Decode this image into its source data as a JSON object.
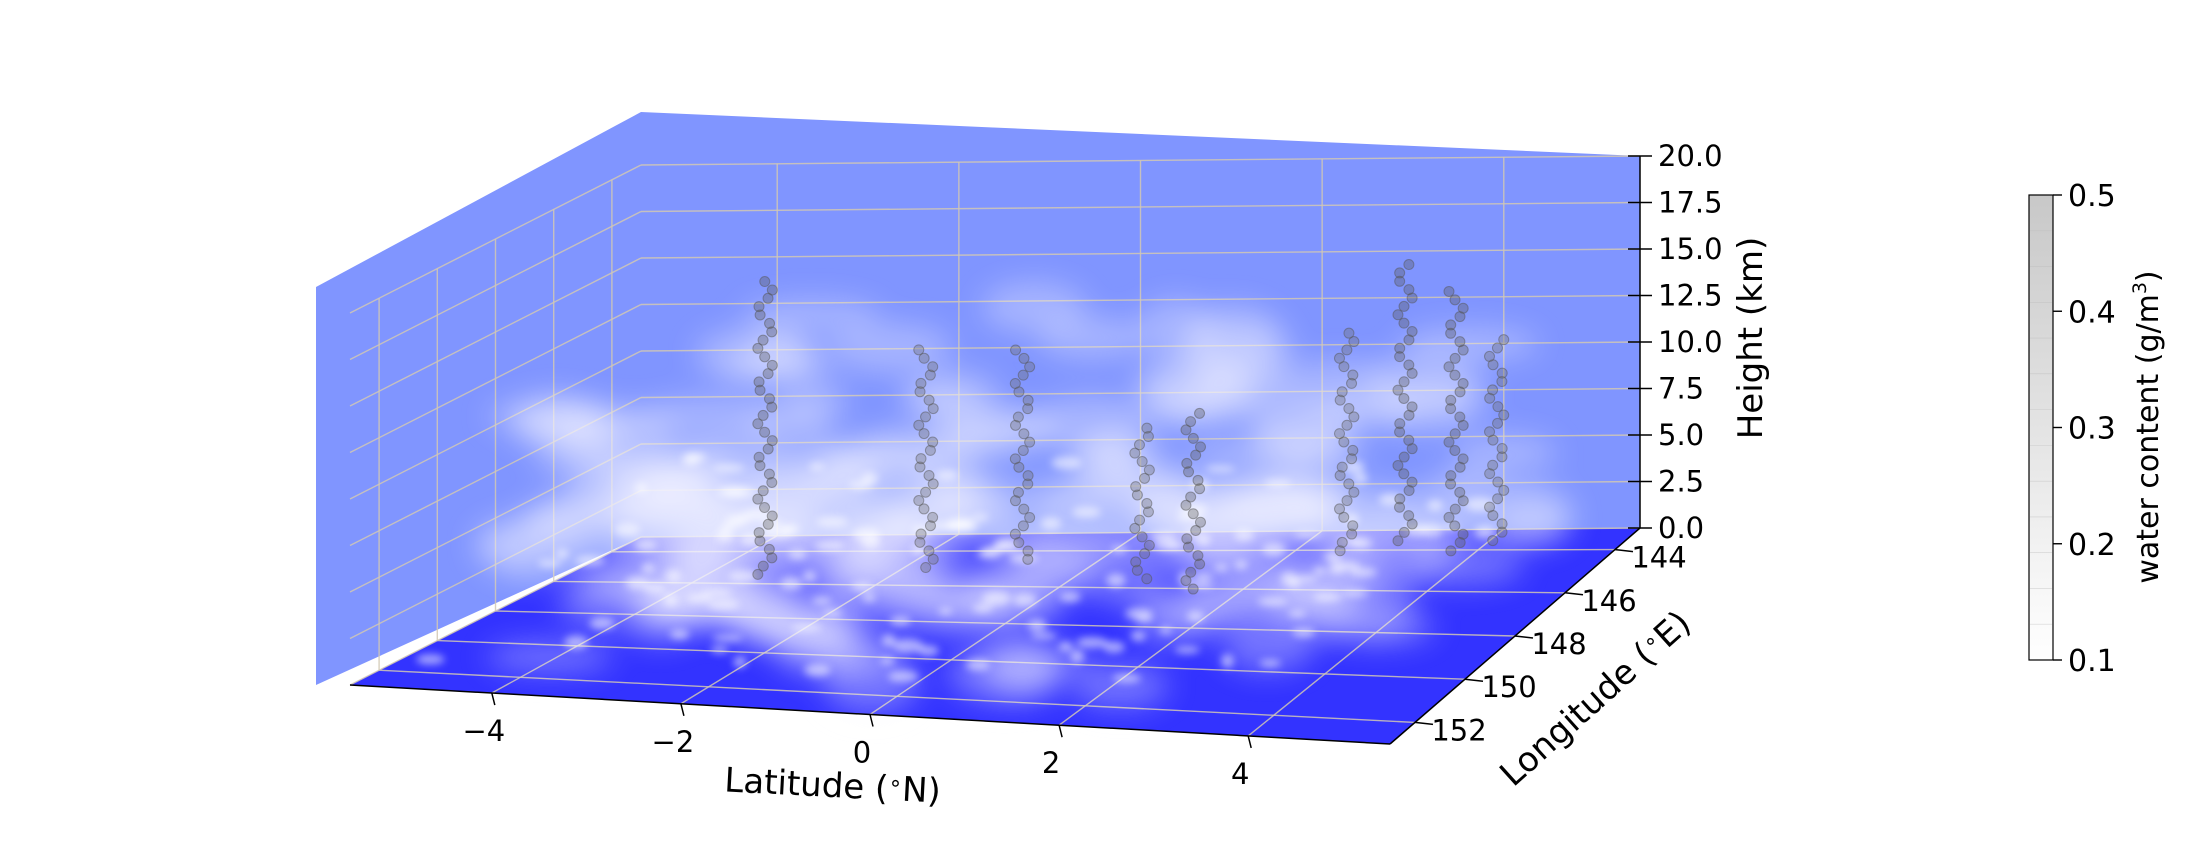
{
  "chart_data": {
    "type": "scatter",
    "projection": "3d",
    "xlabel": "Latitude ($^\\circ$N)",
    "ylabel": "Longitude ($^\\circ$E)",
    "zlabel": "Height (km)",
    "x_tick_labels": [
      "−4",
      "−2",
      "0",
      "2",
      "4"
    ],
    "y_tick_labels": [
      "144",
      "146",
      "148",
      "150",
      "152"
    ],
    "z_tick_labels": [
      "0.0",
      "2.5",
      "5.0",
      "7.5",
      "10.0",
      "12.5",
      "15.0",
      "17.5",
      "20.0"
    ],
    "xlim": [
      -5.5,
      5.5
    ],
    "ylim": [
      143,
      153
    ],
    "zlim": [
      0,
      20
    ],
    "grid": true,
    "pane_colors": {
      "back_walls": "#8095ff",
      "floor": "#3333ff",
      "grid": "#d2c8b4"
    },
    "colorbar": {
      "label": "water content (g/m$^3$)",
      "ticks": [
        "0.1",
        "0.2",
        "0.3",
        "0.4",
        "0.5"
      ],
      "range": [
        0.1,
        0.5
      ],
      "colormap": "white-to-gray"
    },
    "features": [
      {
        "kind": "cloud_layer",
        "lat_range": [
          -5.0,
          4.5
        ],
        "height_range": [
          1.0,
          16.0
        ],
        "water": 0.15
      },
      {
        "kind": "convective_tower",
        "lat": -3.2,
        "lon": 146.0,
        "height_top": 16.5,
        "water": 0.45
      },
      {
        "kind": "convective_tower",
        "lat": -1.6,
        "lon": 145.5,
        "height_top": 12.5,
        "water": 0.4
      },
      {
        "kind": "convective_tower",
        "lat": -0.7,
        "lon": 145.0,
        "height_top": 12.0,
        "water": 0.4
      },
      {
        "kind": "convective_tower",
        "lat": 0.9,
        "lon": 146.0,
        "height_top": 9.0,
        "water": 0.4
      },
      {
        "kind": "convective_tower",
        "lat": 1.6,
        "lon": 146.5,
        "height_top": 10.0,
        "water": 0.45
      },
      {
        "kind": "convective_tower",
        "lat": 2.7,
        "lon": 144.5,
        "height_top": 12.5,
        "water": 0.4
      },
      {
        "kind": "convective_tower",
        "lat": 3.2,
        "lon": 144.0,
        "height_top": 15.5,
        "water": 0.45
      },
      {
        "kind": "convective_tower",
        "lat": 3.9,
        "lon": 144.5,
        "height_top": 14.5,
        "water": 0.45
      },
      {
        "kind": "convective_tower",
        "lat": 4.2,
        "lon": 144.0,
        "height_top": 11.5,
        "water": 0.4
      }
    ]
  }
}
